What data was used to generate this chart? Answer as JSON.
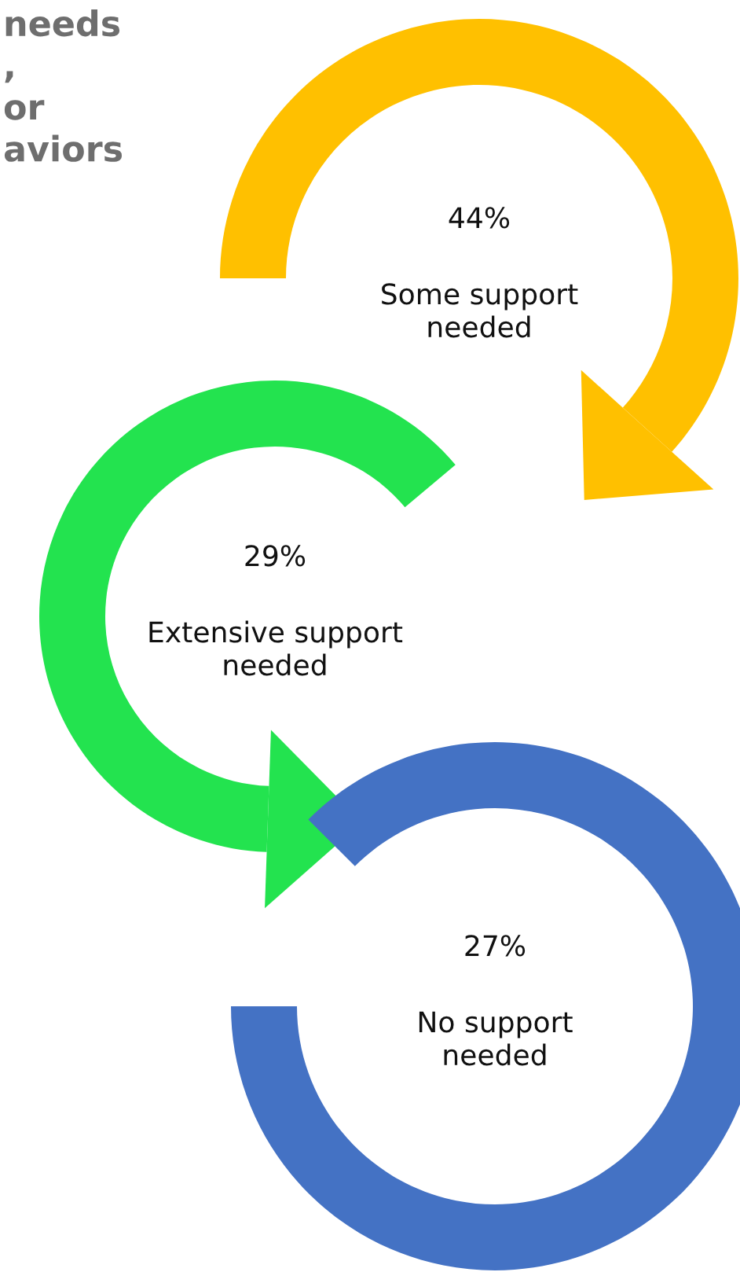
{
  "chart_data": {
    "type": "other",
    "title": "needs\n,\nor\naviors",
    "categories": [
      "Some support\nneeded",
      "Extensive support\nneeded",
      "No support\nneeded"
    ],
    "values": [
      44,
      29,
      27
    ],
    "value_labels": [
      "44%",
      "29%",
      "27%"
    ],
    "colors": [
      "#ffc000",
      "#23e34f",
      "#4472c4"
    ]
  }
}
